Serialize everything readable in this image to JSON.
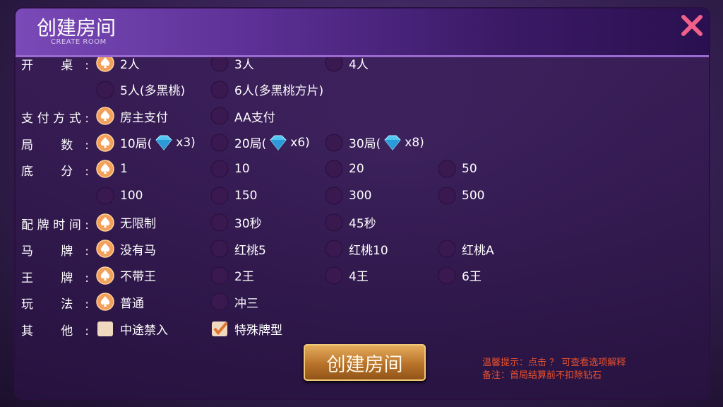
{
  "header": {
    "title": "创建房间",
    "subtitle": "CREATE ROOM"
  },
  "rows": [
    {
      "label": "开 桌:",
      "lines": [
        [
          {
            "text": "2人",
            "selected": true
          },
          {
            "text": "3人"
          },
          {
            "text": "4人"
          }
        ],
        [
          {
            "text": "5人(多黑桃)"
          },
          {
            "text": "6人(多黑桃方片)"
          }
        ]
      ]
    },
    {
      "label": "支付方式:",
      "lines": [
        [
          {
            "text": "房主支付",
            "selected": true
          },
          {
            "text": "AA支付"
          }
        ]
      ]
    },
    {
      "label": "局 数:",
      "lines": [
        [
          {
            "text": "10局(",
            "suffix": "x3)",
            "selected": true
          },
          {
            "text": "20局(",
            "suffix": "x6)"
          },
          {
            "text": "30局(",
            "suffix": "x8)"
          }
        ]
      ]
    },
    {
      "label": "底 分:",
      "lines": [
        [
          {
            "text": "1",
            "selected": true
          },
          {
            "text": "10"
          },
          {
            "text": "20"
          },
          {
            "text": "50"
          }
        ],
        [
          {
            "text": "100"
          },
          {
            "text": "150"
          },
          {
            "text": "300"
          },
          {
            "text": "500"
          }
        ]
      ]
    },
    {
      "label": "配牌时间:",
      "lines": [
        [
          {
            "text": "无限制",
            "selected": true
          },
          {
            "text": "30秒"
          },
          {
            "text": "45秒"
          }
        ]
      ]
    },
    {
      "label": "马 牌:",
      "lines": [
        [
          {
            "text": "没有马",
            "selected": true
          },
          {
            "text": "红桃5"
          },
          {
            "text": "红桃10"
          },
          {
            "text": "红桃A"
          }
        ]
      ]
    },
    {
      "label": "王 牌:",
      "lines": [
        [
          {
            "text": "不带王",
            "selected": true
          },
          {
            "text": "2王"
          },
          {
            "text": "4王"
          },
          {
            "text": "6王"
          }
        ]
      ]
    },
    {
      "label": "玩 法:",
      "lines": [
        [
          {
            "text": "普通",
            "selected": true
          },
          {
            "text": "冲三"
          }
        ]
      ]
    },
    {
      "label": "其 他:",
      "control": "checkbox",
      "lines": [
        [
          {
            "text": "中途禁入"
          },
          {
            "text": "特殊牌型",
            "selected": true
          }
        ]
      ]
    }
  ],
  "button": "创建房间",
  "notes": [
    "温馨提示：点击 ？ 可查看选项解释",
    "备注：首局结算前不扣除钻石"
  ]
}
